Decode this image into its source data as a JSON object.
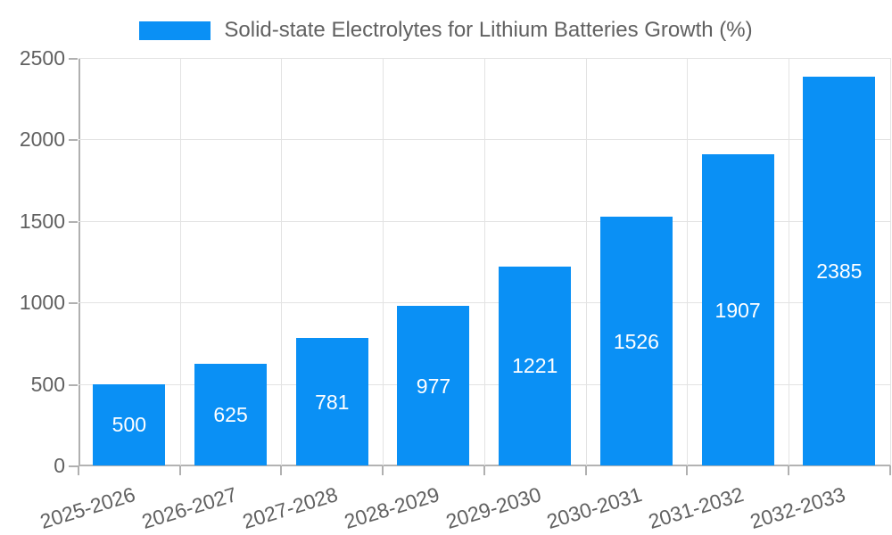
{
  "chart_data": {
    "type": "bar",
    "title": "Solid-state Electrolytes for Lithium Batteries Growth (%)",
    "categories": [
      "2025-2026",
      "2026-2027",
      "2027-2028",
      "2028-2029",
      "2029-2030",
      "2030-2031",
      "2031-2032",
      "2032-2033"
    ],
    "values": [
      500,
      625,
      781,
      977,
      1221,
      1526,
      1907,
      2385
    ],
    "xlabel": "",
    "ylabel": "",
    "ylim": [
      0,
      2500
    ],
    "yticks": [
      0,
      500,
      1000,
      1500,
      2000,
      2500
    ],
    "grid": true,
    "legend_position": "top-center",
    "bar_labels_inside": true
  },
  "colors": {
    "bar": "#0a90f5",
    "grid": "#e3e3e3",
    "axis": "#b0b0b0",
    "tick_text": "#616161",
    "bar_label_text": "#ffffff"
  }
}
